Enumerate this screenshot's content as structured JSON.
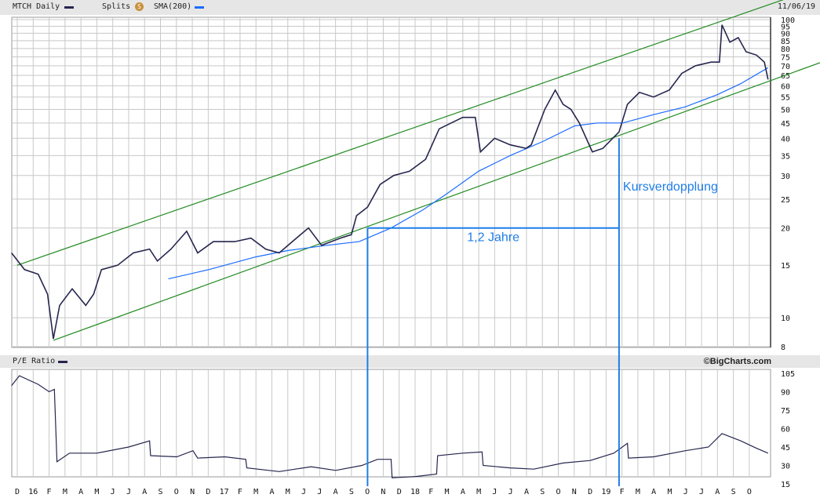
{
  "header": {
    "symbol_label": "MTCH Daily",
    "splits_label": "Splits",
    "splits_icon": "S",
    "sma_label": "SMA(200)",
    "date": "11/06/19"
  },
  "pe_header": {
    "label": "P/E Ratio",
    "credit": "©BigCharts.com"
  },
  "colors": {
    "price": "#26264f",
    "sma": "#1a6cff",
    "channel": "#228b22",
    "annotation": "#1e7ee8",
    "grid": "#c8c8c8"
  },
  "chart_data": [
    {
      "type": "line",
      "scale": "log",
      "ylim": [
        8,
        100
      ],
      "grid": true,
      "yticks": [
        8,
        10,
        15,
        20,
        25,
        30,
        35,
        40,
        45,
        50,
        55,
        60,
        65,
        70,
        75,
        80,
        85,
        90,
        95,
        100
      ],
      "xticks": [
        "D",
        "16",
        "F",
        "M",
        "A",
        "M",
        "J",
        "J",
        "A",
        "S",
        "O",
        "N",
        "D",
        "17",
        "F",
        "M",
        "A",
        "M",
        "J",
        "J",
        "A",
        "S",
        "O",
        "N",
        "D",
        "18",
        "F",
        "M",
        "A",
        "M",
        "J",
        "J",
        "A",
        "S",
        "O",
        "N",
        "D",
        "19",
        "F",
        "M",
        "A",
        "M",
        "J",
        "J",
        "A",
        "S",
        "O"
      ],
      "series": [
        {
          "name": "MTCH Daily",
          "points": [
            [
              "2015-11-20",
              16.5
            ],
            [
              "2015-12-15",
              14.5
            ],
            [
              "2016-01-10",
              14
            ],
            [
              "2016-01-28",
              12
            ],
            [
              "2016-02-08",
              8.5
            ],
            [
              "2016-02-20",
              11
            ],
            [
              "2016-03-15",
              12.5
            ],
            [
              "2016-04-10",
              11
            ],
            [
              "2016-04-25",
              12
            ],
            [
              "2016-05-10",
              14.5
            ],
            [
              "2016-06-10",
              15
            ],
            [
              "2016-07-10",
              16.5
            ],
            [
              "2016-08-10",
              17
            ],
            [
              "2016-08-25",
              15.5
            ],
            [
              "2016-09-20",
              17
            ],
            [
              "2016-10-20",
              19.5
            ],
            [
              "2016-11-10",
              16.5
            ],
            [
              "2016-12-10",
              18
            ],
            [
              "2017-01-20",
              18
            ],
            [
              "2017-02-20",
              18.5
            ],
            [
              "2017-03-20",
              17
            ],
            [
              "2017-04-15",
              16.5
            ],
            [
              "2017-05-10",
              18
            ],
            [
              "2017-06-10",
              20
            ],
            [
              "2017-07-05",
              17.5
            ],
            [
              "2017-08-10",
              18.5
            ],
            [
              "2017-08-31",
              19
            ],
            [
              "2017-09-10",
              22
            ],
            [
              "2017-10-01",
              23.5
            ],
            [
              "2017-10-25",
              28
            ],
            [
              "2017-11-20",
              30
            ],
            [
              "2017-12-20",
              31
            ],
            [
              "2018-01-20",
              34
            ],
            [
              "2018-02-15",
              43
            ],
            [
              "2018-03-10",
              45
            ],
            [
              "2018-04-01",
              47
            ],
            [
              "2018-04-25",
              47
            ],
            [
              "2018-05-05",
              36
            ],
            [
              "2018-06-01",
              40
            ],
            [
              "2018-07-01",
              38
            ],
            [
              "2018-07-31",
              37
            ],
            [
              "2018-08-10",
              38
            ],
            [
              "2018-09-05",
              50
            ],
            [
              "2018-09-25",
              58
            ],
            [
              "2018-10-10",
              52
            ],
            [
              "2018-10-25",
              50
            ],
            [
              "2018-11-10",
              45
            ],
            [
              "2018-12-05",
              36
            ],
            [
              "2018-12-25",
              37
            ],
            [
              "2019-01-25",
              42
            ],
            [
              "2019-02-10",
              52
            ],
            [
              "2019-03-05",
              57
            ],
            [
              "2019-04-01",
              55
            ],
            [
              "2019-05-01",
              58
            ],
            [
              "2019-05-25",
              66
            ],
            [
              "2019-06-20",
              70
            ],
            [
              "2019-07-20",
              72
            ],
            [
              "2019-08-05",
              72
            ],
            [
              "2019-08-10",
              96
            ],
            [
              "2019-08-25",
              84
            ],
            [
              "2019-09-10",
              87
            ],
            [
              "2019-09-25",
              78
            ],
            [
              "2019-10-15",
              76
            ],
            [
              "2019-10-30",
              72
            ],
            [
              "2019-11-06",
              63
            ]
          ]
        },
        {
          "name": "SMA(200)",
          "points": [
            [
              "2016-09-15",
              13.5
            ],
            [
              "2016-12-01",
              14.5
            ],
            [
              "2017-03-01",
              16
            ],
            [
              "2017-05-01",
              16.8
            ],
            [
              "2017-07-15",
              17.5
            ],
            [
              "2017-09-15",
              18
            ],
            [
              "2017-11-15",
              20
            ],
            [
              "2018-01-15",
              23
            ],
            [
              "2018-03-01",
              26
            ],
            [
              "2018-05-01",
              31
            ],
            [
              "2018-07-01",
              35
            ],
            [
              "2018-09-01",
              39
            ],
            [
              "2018-11-01",
              44
            ],
            [
              "2018-12-15",
              45
            ],
            [
              "2019-02-01",
              45
            ],
            [
              "2019-04-01",
              48
            ],
            [
              "2019-06-01",
              51
            ],
            [
              "2019-08-01",
              56
            ],
            [
              "2019-09-15",
              61
            ],
            [
              "2019-11-06",
              69
            ]
          ]
        }
      ],
      "channel": [
        {
          "from": [
            "2015-12-01",
            15
          ],
          "to": [
            "2019-08-10",
            99
          ]
        },
        {
          "from": [
            "2016-02-08",
            8.4
          ],
          "to": [
            "2019-11-06",
            62
          ]
        }
      ],
      "annotations": {
        "start_date": "2017-10-01",
        "end_date": "2019-01-25",
        "level": 20,
        "duration_label": "1,2 Jahre",
        "doubling_label": "Kursverdopplung"
      }
    },
    {
      "type": "line",
      "name": "P/E Ratio",
      "ylim": [
        15,
        105
      ],
      "yticks": [
        15,
        30,
        45,
        60,
        75,
        90,
        105
      ],
      "points": [
        [
          "2015-11-20",
          95
        ],
        [
          "2015-12-05",
          103
        ],
        [
          "2016-01-10",
          96
        ],
        [
          "2016-01-31",
          90
        ],
        [
          "2016-02-10",
          92
        ],
        [
          "2016-02-15",
          33
        ],
        [
          "2016-03-10",
          40
        ],
        [
          "2016-05-01",
          40
        ],
        [
          "2016-07-01",
          45
        ],
        [
          "2016-08-10",
          50
        ],
        [
          "2016-08-12",
          38
        ],
        [
          "2016-10-01",
          37
        ],
        [
          "2016-11-01",
          42
        ],
        [
          "2016-11-10",
          36
        ],
        [
          "2017-01-01",
          37
        ],
        [
          "2017-02-10",
          35
        ],
        [
          "2017-02-12",
          28
        ],
        [
          "2017-04-15",
          25
        ],
        [
          "2017-06-15",
          29
        ],
        [
          "2017-08-01",
          26
        ],
        [
          "2017-09-20",
          30
        ],
        [
          "2017-10-20",
          35
        ],
        [
          "2017-11-15",
          35
        ],
        [
          "2017-11-17",
          20
        ],
        [
          "2018-01-01",
          21
        ],
        [
          "2018-02-10",
          23
        ],
        [
          "2018-02-12",
          38
        ],
        [
          "2018-04-01",
          40
        ],
        [
          "2018-05-08",
          41
        ],
        [
          "2018-05-10",
          30
        ],
        [
          "2018-07-01",
          28
        ],
        [
          "2018-08-15",
          27
        ],
        [
          "2018-10-10",
          32
        ],
        [
          "2018-12-01",
          34
        ],
        [
          "2019-01-15",
          40
        ],
        [
          "2019-02-10",
          48
        ],
        [
          "2019-02-12",
          36
        ],
        [
          "2019-04-01",
          37
        ],
        [
          "2019-06-01",
          42
        ],
        [
          "2019-07-15",
          45
        ],
        [
          "2019-08-10",
          56
        ],
        [
          "2019-09-15",
          50
        ],
        [
          "2019-10-15",
          44
        ],
        [
          "2019-11-06",
          40
        ]
      ]
    }
  ]
}
